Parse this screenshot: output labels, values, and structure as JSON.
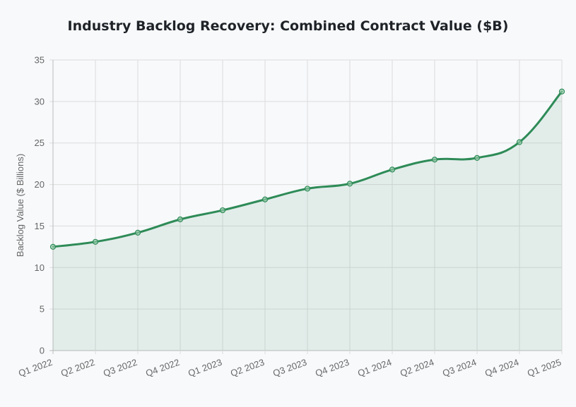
{
  "chart_data": {
    "type": "area",
    "title": "Industry Backlog Recovery: Combined Contract Value ($B)",
    "xlabel": "",
    "ylabel": "Backlog Value ($ Billions)",
    "categories": [
      "Q1 2022",
      "Q2 2022",
      "Q3 2022",
      "Q4 2022",
      "Q1 2023",
      "Q2 2023",
      "Q3 2023",
      "Q4 2023",
      "Q1 2024",
      "Q2 2024",
      "Q3 2024",
      "Q4 2024",
      "Q1 2025"
    ],
    "series": [
      {
        "name": "Combined Contract Value",
        "values": [
          12.5,
          13.1,
          14.2,
          15.8,
          16.9,
          18.2,
          19.5,
          20.1,
          21.8,
          23.0,
          23.2,
          25.1,
          31.2
        ]
      }
    ],
    "ylim": [
      0,
      35
    ],
    "yticks": [
      0,
      5,
      10,
      15,
      20,
      25,
      30,
      35
    ],
    "grid": true,
    "legend": "none",
    "colors": {
      "line": "#2e8b57",
      "fill": "#2e8b57",
      "grid": "#dcdcdc",
      "axis": "#bbbbbb"
    }
  }
}
